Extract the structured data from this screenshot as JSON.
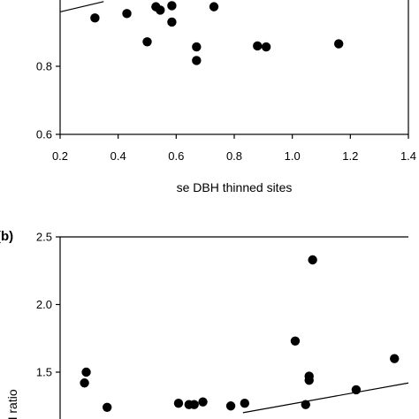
{
  "chart_data": [
    {
      "type": "scatter",
      "panel_label": "",
      "xlabel": "se DBH thinned sites",
      "ylabel": "",
      "xlim": [
        0.2,
        1.4
      ],
      "ylim": [
        0.6,
        1.0
      ],
      "xticks": [
        "0.2",
        "0.4",
        "0.6",
        "0.8",
        "1.0",
        "1.2",
        "1.4"
      ],
      "yticks": [
        "0.6",
        "0.8"
      ],
      "points": [
        {
          "x": 0.32,
          "y": 0.942
        },
        {
          "x": 0.43,
          "y": 0.955
        },
        {
          "x": 0.53,
          "y": 0.975
        },
        {
          "x": 0.545,
          "y": 0.965
        },
        {
          "x": 0.585,
          "y": 0.978
        },
        {
          "x": 0.585,
          "y": 0.93
        },
        {
          "x": 0.5,
          "y": 0.872
        },
        {
          "x": 0.67,
          "y": 0.857
        },
        {
          "x": 0.67,
          "y": 0.817
        },
        {
          "x": 0.73,
          "y": 0.975
        },
        {
          "x": 0.88,
          "y": 0.86
        },
        {
          "x": 0.91,
          "y": 0.857
        },
        {
          "x": 1.16,
          "y": 0.866
        }
      ],
      "trend_line": {
        "x": [
          0.2,
          0.35
        ],
        "y": [
          0.96,
          0.99
        ]
      }
    },
    {
      "type": "scatter",
      "panel_label": "(b)",
      "xlabel": "",
      "ylabel": "…H ratio",
      "ylim": [
        1.0,
        2.5
      ],
      "yticks": [
        "1.5",
        "2.0",
        "2.5"
      ],
      "points": [
        {
          "x": 0.34,
          "y": 1.42
        },
        {
          "x": 0.35,
          "y": 1.5
        },
        {
          "x": 0.47,
          "y": 1.24
        },
        {
          "x": 0.88,
          "y": 1.27
        },
        {
          "x": 0.94,
          "y": 1.26
        },
        {
          "x": 0.97,
          "y": 1.26
        },
        {
          "x": 1.02,
          "y": 1.28
        },
        {
          "x": 1.18,
          "y": 1.25
        },
        {
          "x": 1.26,
          "y": 1.27
        },
        {
          "x": 1.55,
          "y": 1.73
        },
        {
          "x": 1.61,
          "y": 1.26
        },
        {
          "x": 1.63,
          "y": 1.47
        },
        {
          "x": 1.63,
          "y": 1.44
        },
        {
          "x": 1.65,
          "y": 2.33
        },
        {
          "x": 1.9,
          "y": 1.37
        },
        {
          "x": 2.12,
          "y": 1.6
        }
      ],
      "trend_line": {
        "x": [
          1.25,
          2.2
        ],
        "y": [
          1.2,
          1.42
        ]
      }
    }
  ]
}
